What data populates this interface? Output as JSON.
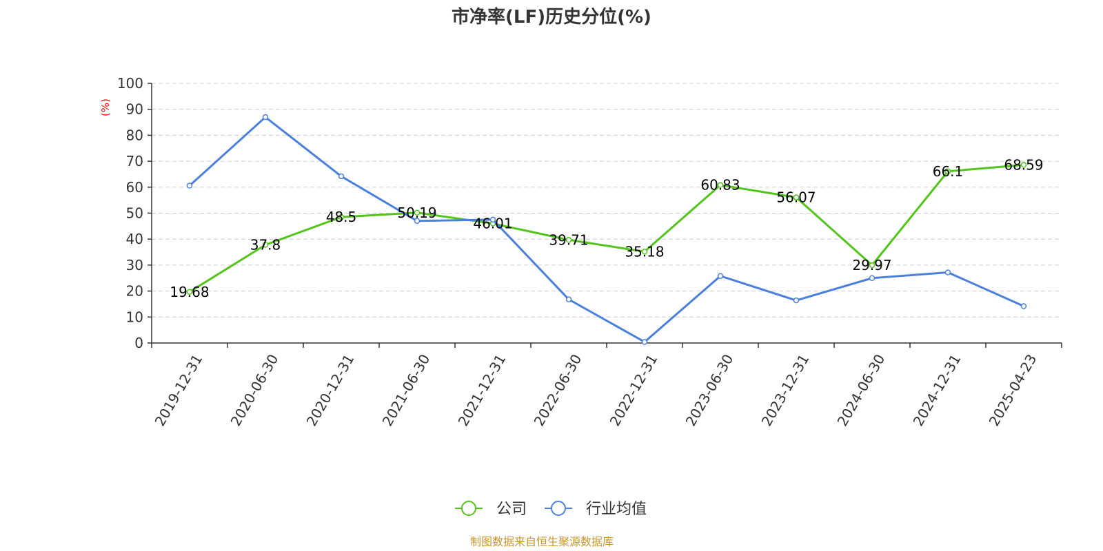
{
  "chart_data": {
    "type": "line",
    "title": "市净率(LF)历史分位(%)",
    "y_unit_label": "(%)",
    "categories": [
      "2019-12-31",
      "2020-06-30",
      "2020-12-31",
      "2021-06-30",
      "2021-12-31",
      "2022-06-30",
      "2022-12-31",
      "2023-06-30",
      "2023-12-31",
      "2024-06-30",
      "2024-12-31",
      "2025-04-23"
    ],
    "series": [
      {
        "name": "公司",
        "color": "#52c41a",
        "values": [
          19.68,
          37.8,
          48.5,
          50.19,
          46.01,
          39.71,
          35.18,
          60.83,
          56.07,
          29.97,
          66.1,
          68.59
        ],
        "data_labels": [
          "19.68",
          "37.8",
          "48.5",
          "50.19",
          "46.01",
          "39.71",
          "35.18",
          "60.83",
          "56.07",
          "29.97",
          "66.1",
          "68.59"
        ],
        "show_labels": true
      },
      {
        "name": "行业均值",
        "color": "#4a7fdc",
        "values": [
          60.6,
          87.0,
          64.2,
          47.0,
          47.5,
          16.8,
          0.4,
          25.8,
          16.4,
          25.0,
          27.2,
          14.2
        ],
        "show_labels": false
      }
    ],
    "ylim": [
      0,
      100
    ],
    "y_ticks": [
      "0",
      "10",
      "20",
      "30",
      "40",
      "50",
      "60",
      "70",
      "80",
      "90",
      "100"
    ],
    "grid": true,
    "legend_position": "bottom-center"
  },
  "source": "制图数据来自恒生聚源数据库"
}
